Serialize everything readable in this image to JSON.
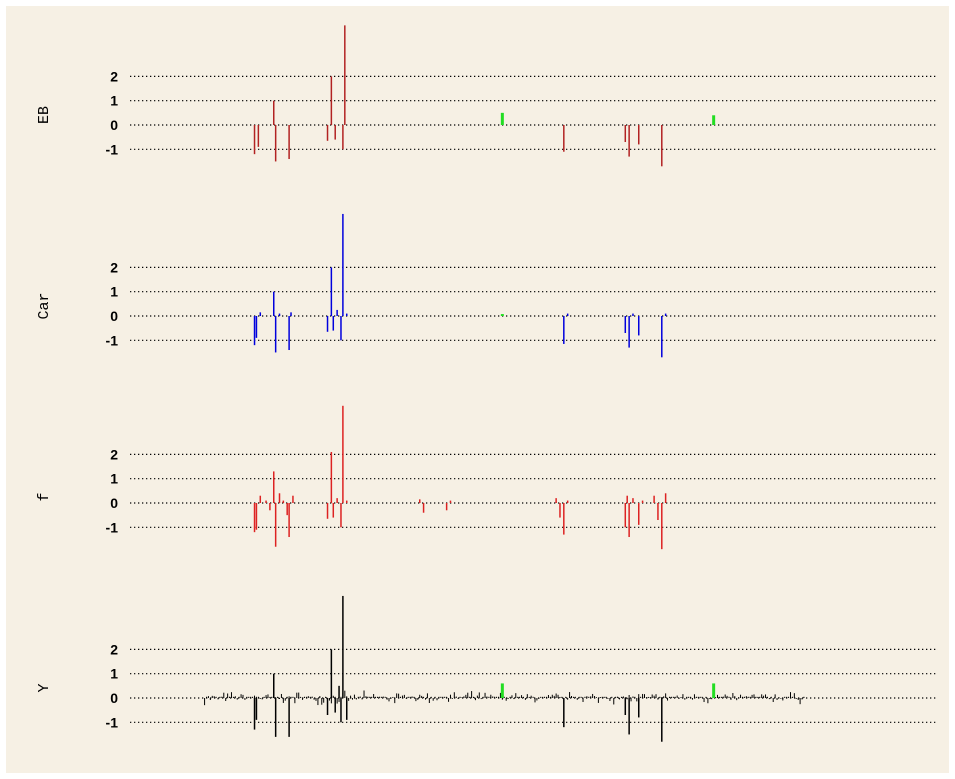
{
  "colors": {
    "background": "#f6f0e4",
    "frame": "#ffffff",
    "gridline": "#000000",
    "EB": "#b22222",
    "Car": "#0000dd",
    "f": "#dd2222",
    "Y": "#000000",
    "highlight": "#22dd22"
  },
  "chart_data": [
    {
      "type": "bar",
      "title": "EB",
      "ylim": [
        -1.7,
        4.2
      ],
      "yticks": [
        2,
        1,
        0,
        -1
      ],
      "grid": true,
      "xlim": [
        0,
        380
      ],
      "color": "#b22222",
      "bars": [
        {
          "x": 44,
          "v": -1.2
        },
        {
          "x": 46,
          "v": -0.9
        },
        {
          "x": 54,
          "v": 1.0
        },
        {
          "x": 55,
          "v": -1.5
        },
        {
          "x": 62,
          "v": -1.4
        },
        {
          "x": 82,
          "v": -0.65
        },
        {
          "x": 84,
          "v": 2.0
        },
        {
          "x": 86,
          "v": -0.6
        },
        {
          "x": 90,
          "v": -1.0
        },
        {
          "x": 91,
          "v": 4.1
        },
        {
          "x": 205,
          "v": -1.1
        },
        {
          "x": 237,
          "v": -0.7
        },
        {
          "x": 239,
          "v": -1.3
        },
        {
          "x": 244,
          "v": -0.8
        },
        {
          "x": 256,
          "v": -1.7
        }
      ],
      "highlights": [
        {
          "x": 173,
          "v": 0.5
        },
        {
          "x": 283,
          "v": 0.4
        }
      ]
    },
    {
      "type": "bar",
      "title": "Car",
      "ylim": [
        -1.7,
        4.2
      ],
      "yticks": [
        2,
        1,
        0,
        -1
      ],
      "grid": true,
      "xlim": [
        0,
        380
      ],
      "color": "#0000dd",
      "bars": [
        {
          "x": 44,
          "v": -1.2
        },
        {
          "x": 45,
          "v": -0.9
        },
        {
          "x": 47,
          "v": 0.15
        },
        {
          "x": 54,
          "v": 1.0
        },
        {
          "x": 55,
          "v": -1.5
        },
        {
          "x": 57,
          "v": 0.1
        },
        {
          "x": 62,
          "v": -1.4
        },
        {
          "x": 63,
          "v": 0.15
        },
        {
          "x": 82,
          "v": -0.65
        },
        {
          "x": 84,
          "v": 2.0
        },
        {
          "x": 85,
          "v": -0.6
        },
        {
          "x": 87,
          "v": 0.25
        },
        {
          "x": 89,
          "v": -1.0
        },
        {
          "x": 90,
          "v": 4.2
        },
        {
          "x": 92,
          "v": 0.1
        },
        {
          "x": 205,
          "v": -1.15
        },
        {
          "x": 207,
          "v": 0.1
        },
        {
          "x": 237,
          "v": -0.7
        },
        {
          "x": 239,
          "v": -1.3
        },
        {
          "x": 241,
          "v": 0.1
        },
        {
          "x": 244,
          "v": -0.8
        },
        {
          "x": 256,
          "v": -1.7
        },
        {
          "x": 258,
          "v": 0.1
        }
      ],
      "highlights": [
        {
          "x": 173,
          "v": 0.08
        }
      ]
    },
    {
      "type": "bar",
      "title": "f",
      "ylim": [
        -1.9,
        4.0
      ],
      "yticks": [
        2,
        1,
        0,
        -1
      ],
      "grid": true,
      "xlim": [
        0,
        380
      ],
      "color": "#dd2222",
      "bars": [
        {
          "x": 44,
          "v": -1.2
        },
        {
          "x": 45,
          "v": -1.1
        },
        {
          "x": 47,
          "v": 0.3
        },
        {
          "x": 50,
          "v": 0.1
        },
        {
          "x": 52,
          "v": -0.3
        },
        {
          "x": 54,
          "v": 1.3
        },
        {
          "x": 55,
          "v": -1.8
        },
        {
          "x": 57,
          "v": 0.4
        },
        {
          "x": 59,
          "v": 0.1
        },
        {
          "x": 61,
          "v": -0.5
        },
        {
          "x": 62,
          "v": -1.4
        },
        {
          "x": 64,
          "v": 0.3
        },
        {
          "x": 82,
          "v": -0.65
        },
        {
          "x": 84,
          "v": 2.1
        },
        {
          "x": 85,
          "v": -0.6
        },
        {
          "x": 87,
          "v": 0.2
        },
        {
          "x": 89,
          "v": -1.0
        },
        {
          "x": 90,
          "v": 4.0
        },
        {
          "x": 92,
          "v": 0.1
        },
        {
          "x": 130,
          "v": 0.15
        },
        {
          "x": 132,
          "v": -0.4
        },
        {
          "x": 144,
          "v": -0.3
        },
        {
          "x": 146,
          "v": 0.1
        },
        {
          "x": 201,
          "v": 0.2
        },
        {
          "x": 203,
          "v": -0.6
        },
        {
          "x": 205,
          "v": -1.3
        },
        {
          "x": 207,
          "v": 0.1
        },
        {
          "x": 237,
          "v": -1.0
        },
        {
          "x": 238,
          "v": 0.3
        },
        {
          "x": 239,
          "v": -1.4
        },
        {
          "x": 241,
          "v": 0.2
        },
        {
          "x": 244,
          "v": -0.9
        },
        {
          "x": 246,
          "v": 0.1
        },
        {
          "x": 252,
          "v": 0.3
        },
        {
          "x": 254,
          "v": -0.7
        },
        {
          "x": 256,
          "v": -1.9
        },
        {
          "x": 258,
          "v": 0.4
        }
      ],
      "highlights": []
    },
    {
      "type": "bar",
      "title": "Y",
      "ylim": [
        -1.9,
        4.2
      ],
      "yticks": [
        2,
        1,
        0,
        -1
      ],
      "grid": true,
      "xlim": [
        0,
        380
      ],
      "color": "#000000",
      "noise": {
        "x_from": 18,
        "x_to": 330,
        "amplitude": 0.32
      },
      "bars": [
        {
          "x": 44,
          "v": -1.3
        },
        {
          "x": 45,
          "v": -0.9
        },
        {
          "x": 54,
          "v": 1.0
        },
        {
          "x": 55,
          "v": -1.6
        },
        {
          "x": 62,
          "v": -1.6
        },
        {
          "x": 82,
          "v": -0.7
        },
        {
          "x": 84,
          "v": 2.0
        },
        {
          "x": 86,
          "v": -0.6
        },
        {
          "x": 88,
          "v": 0.5
        },
        {
          "x": 89,
          "v": -1.0
        },
        {
          "x": 90,
          "v": 4.2
        },
        {
          "x": 92,
          "v": -0.9
        },
        {
          "x": 205,
          "v": -1.2
        },
        {
          "x": 237,
          "v": -0.7
        },
        {
          "x": 239,
          "v": -1.5
        },
        {
          "x": 244,
          "v": -0.8
        },
        {
          "x": 256,
          "v": -1.8
        }
      ],
      "highlights": [
        {
          "x": 173,
          "v": 0.6
        },
        {
          "x": 283,
          "v": 0.6
        }
      ]
    }
  ]
}
